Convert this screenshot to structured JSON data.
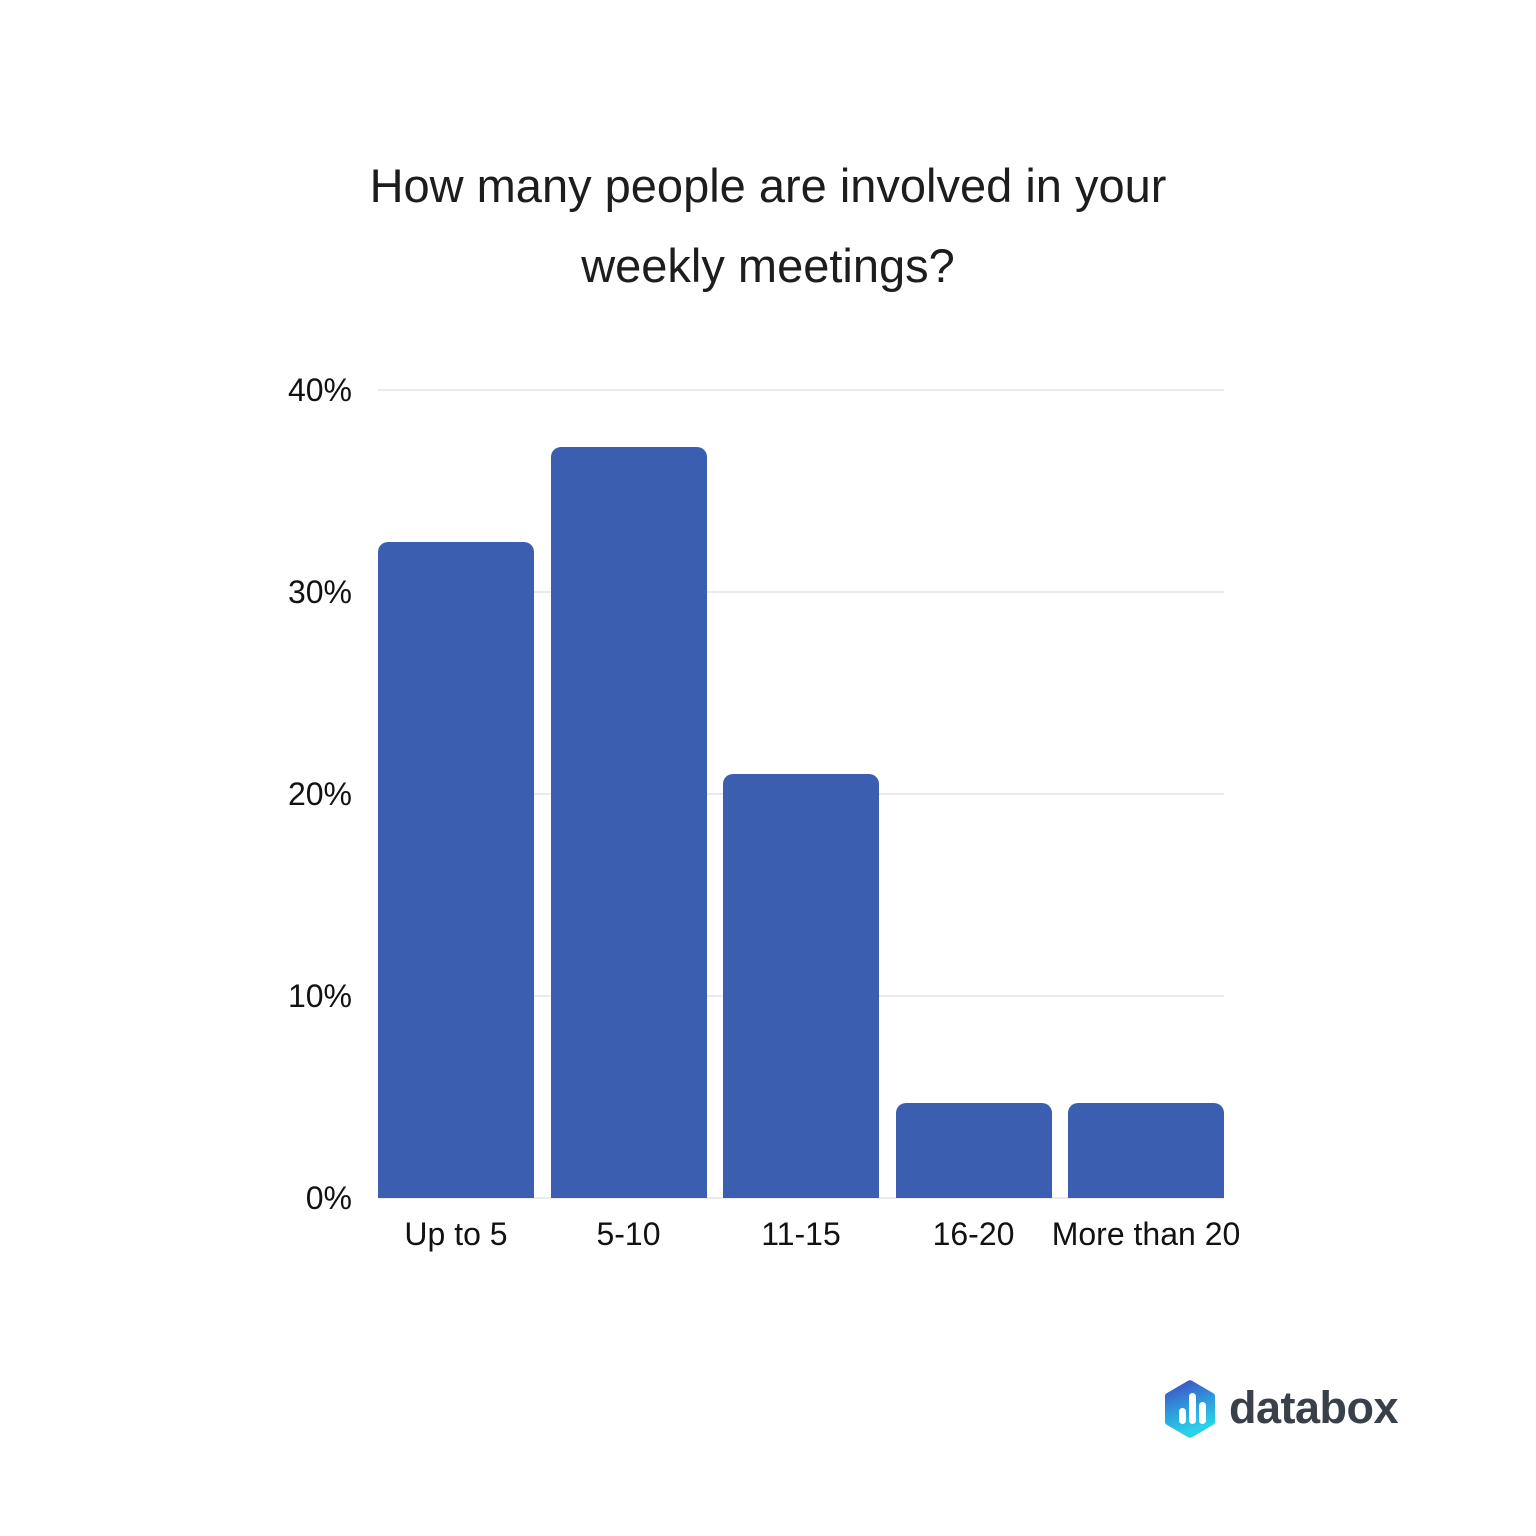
{
  "title": {
    "text": "How many people are involved in your weekly meetings?",
    "line1": "How many people are involved in your",
    "line2": "weekly meetings?"
  },
  "chart_data": {
    "type": "bar",
    "title": "How many people are involved in your weekly meetings?",
    "categories": [
      "Up to 5",
      "5-10",
      "11-15",
      "16-20",
      "More than 20"
    ],
    "values": [
      32.5,
      37.2,
      21,
      4.7,
      4.7
    ],
    "unit": "%",
    "xlabel": "",
    "ylabel": "",
    "ylim": [
      0,
      40
    ],
    "yticks": [
      {
        "value": 40,
        "label": "40%"
      },
      {
        "value": 30,
        "label": "30%"
      },
      {
        "value": 20,
        "label": "20%"
      },
      {
        "value": 10,
        "label": "10%"
      },
      {
        "value": 0,
        "label": "0%"
      }
    ],
    "grid": true,
    "legend": "none",
    "bar_color": "#3C5EB0",
    "gridline_color": "#EAEAEA",
    "axis_label_color": "#121212",
    "title_color": "#1D1D1D"
  },
  "branding": {
    "logo_text": "databox",
    "icon": "databox-hexagon-bar-chart-icon",
    "text_color": "#3A4049",
    "gradient": [
      "#3E52C8",
      "#2E9BDC",
      "#2BD0E9"
    ],
    "icon_bar_color": "#FFFFFF"
  }
}
